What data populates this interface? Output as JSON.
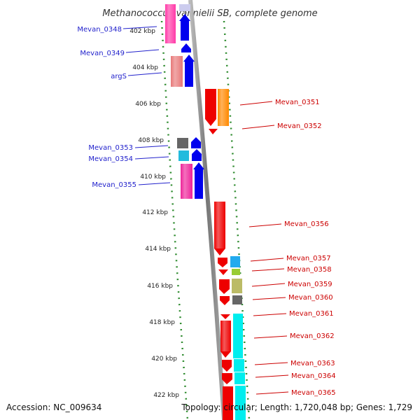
{
  "title": "Methanococcus vannielii SB, complete genome",
  "accession": "Accession: NC_009634",
  "topology": "Topology: circular; Length: 1,720,048 bp; Genes: 1,729",
  "ticks": [
    "402 kbp",
    "404 kbp",
    "406 kbp",
    "408 kbp",
    "410 kbp",
    "412 kbp",
    "414 kbp",
    "416 kbp",
    "418 kbp",
    "420 kbp",
    "422 kbp"
  ],
  "colors": {
    "minus_strand_label": "#2222cc",
    "plus_strand_label": "#cc0000",
    "ruler": "#2e8b2e",
    "axis": "#888888"
  },
  "genes_left": [
    {
      "label": "Mevan_0348",
      "feature_color": "#ff3aa8",
      "cds_color": "#0000ee"
    },
    {
      "label": "Mevan_0349",
      "feature_color": "#0000ee",
      "cds_color": "#0000ee"
    },
    {
      "label": "argS",
      "feature_color": "#e87878",
      "cds_color": "#0000ee"
    },
    {
      "label": "Mevan_0353",
      "feature_color": "#666666",
      "cds_color": "#0000ee"
    },
    {
      "label": "Mevan_0354",
      "feature_color": "#22bbdd",
      "cds_color": "#0000ee"
    },
    {
      "label": "Mevan_0355",
      "feature_color": "#ee2299",
      "cds_color": "#0000ee"
    }
  ],
  "genes_right": [
    {
      "label": "Mevan_0351",
      "cds_color": "#ee0000",
      "feature_color": "#ff8800"
    },
    {
      "label": "Mevan_0352",
      "cds_color": "#ee0000",
      "feature_color": ""
    },
    {
      "label": "Mevan_0356",
      "cds_color": "#ee0000",
      "feature_color": ""
    },
    {
      "label": "Mevan_0357",
      "cds_color": "#ee0000",
      "feature_color": "#22aaee"
    },
    {
      "label": "Mevan_0358",
      "cds_color": "#ee0000",
      "feature_color": "#99cc33"
    },
    {
      "label": "Mevan_0359",
      "cds_color": "#ee0000",
      "feature_color": "#bbbb66"
    },
    {
      "label": "Mevan_0360",
      "cds_color": "#ee0000",
      "feature_color": "#666666"
    },
    {
      "label": "Mevan_0361",
      "cds_color": "#ee0000",
      "feature_color": "#00eeee"
    },
    {
      "label": "Mevan_0362",
      "cds_color": "#ee0000",
      "feature_color": "#00eeee"
    },
    {
      "label": "Mevan_0363",
      "cds_color": "#ee0000",
      "feature_color": "#00eeee"
    },
    {
      "label": "Mevan_0364",
      "cds_color": "#ee0000",
      "feature_color": "#00eeee"
    },
    {
      "label": "Mevan_0365",
      "cds_color": "#ee0000",
      "feature_color": "#00eeee"
    }
  ]
}
